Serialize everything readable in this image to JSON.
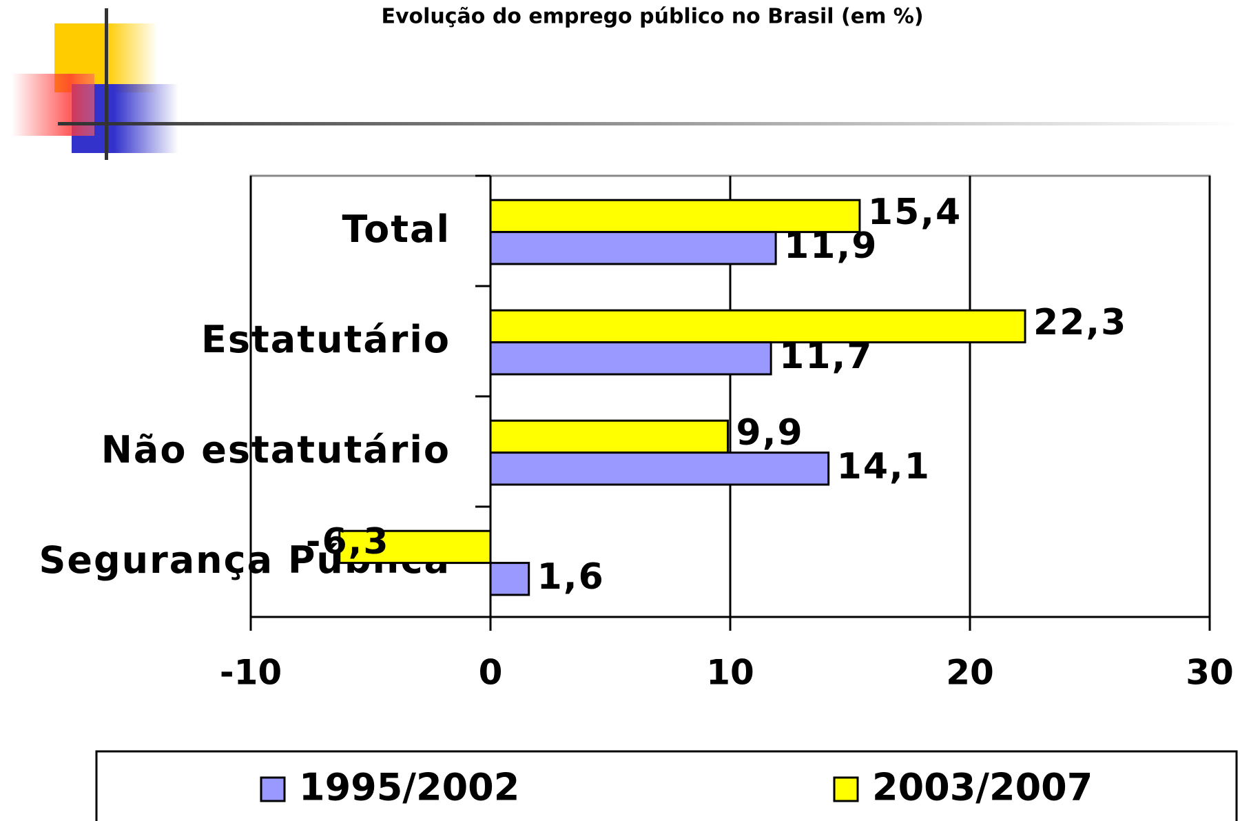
{
  "chart_data": {
    "type": "bar",
    "orientation": "horizontal",
    "title": "Evolução do emprego público no Brasil (em %)",
    "categories": [
      "Total",
      "Estatutário",
      "Não estatutário",
      "Segurança Pública"
    ],
    "series": [
      {
        "name": "1995/2002",
        "color": "#9999ff",
        "values": [
          11.9,
          11.7,
          14.1,
          1.6
        ],
        "value_labels": [
          "11,9",
          "11,7",
          "14,1",
          "1,6"
        ]
      },
      {
        "name": "2003/2007",
        "color": "#ffff00",
        "values": [
          15.4,
          22.3,
          9.9,
          -6.3
        ],
        "value_labels": [
          "15,4",
          "22,3",
          "9,9",
          "-6,3"
        ]
      }
    ],
    "xlim": [
      -10,
      30
    ],
    "xticks": [
      -10,
      0,
      10,
      20,
      30
    ],
    "grid": true
  }
}
